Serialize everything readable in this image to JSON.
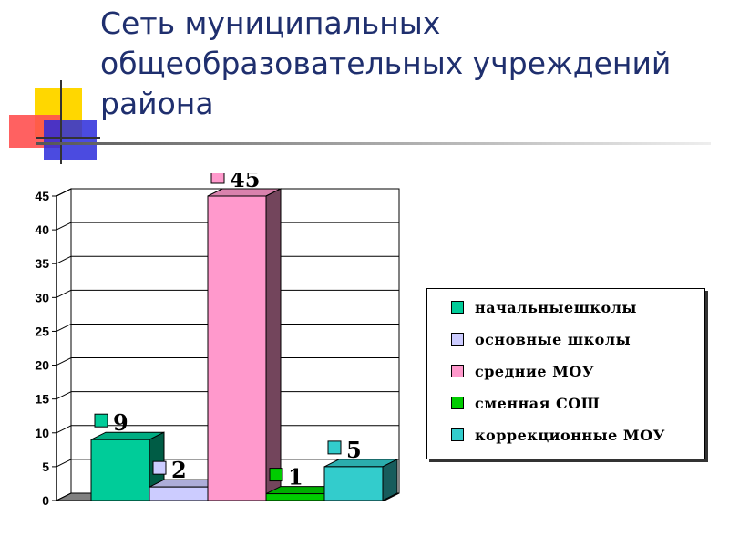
{
  "slide": {
    "title_lines": [
      "Сеть муниципальных",
      "общеобразовательных учреждений",
      "района"
    ]
  },
  "colors": {
    "title": "#1f2f6e",
    "deco_yellow": "#ffd700",
    "deco_red": "#ff3030",
    "deco_blue": "#2b2bdb"
  },
  "chart_data": {
    "type": "bar",
    "categories": [
      "начальныешколы",
      "основные школы",
      "средние МОУ",
      "сменная СОШ",
      "коррекционные МОУ"
    ],
    "values": [
      9,
      2,
      45,
      1,
      5
    ],
    "data_labels": [
      "9",
      "2",
      "45",
      "1",
      "5"
    ],
    "colors": [
      "#00cc99",
      "#ccccff",
      "#ff99cc",
      "#00cc00",
      "#33cccc"
    ],
    "ylim": [
      0,
      45
    ],
    "yticks": [
      "0",
      "5",
      "10",
      "15",
      "20",
      "25",
      "30",
      "35",
      "40",
      "45"
    ],
    "grid": true,
    "legend_position": "right",
    "legend": [
      "начальныешколы",
      "основные школы",
      "средние МОУ",
      "сменная СОШ",
      "коррекционные МОУ"
    ]
  }
}
